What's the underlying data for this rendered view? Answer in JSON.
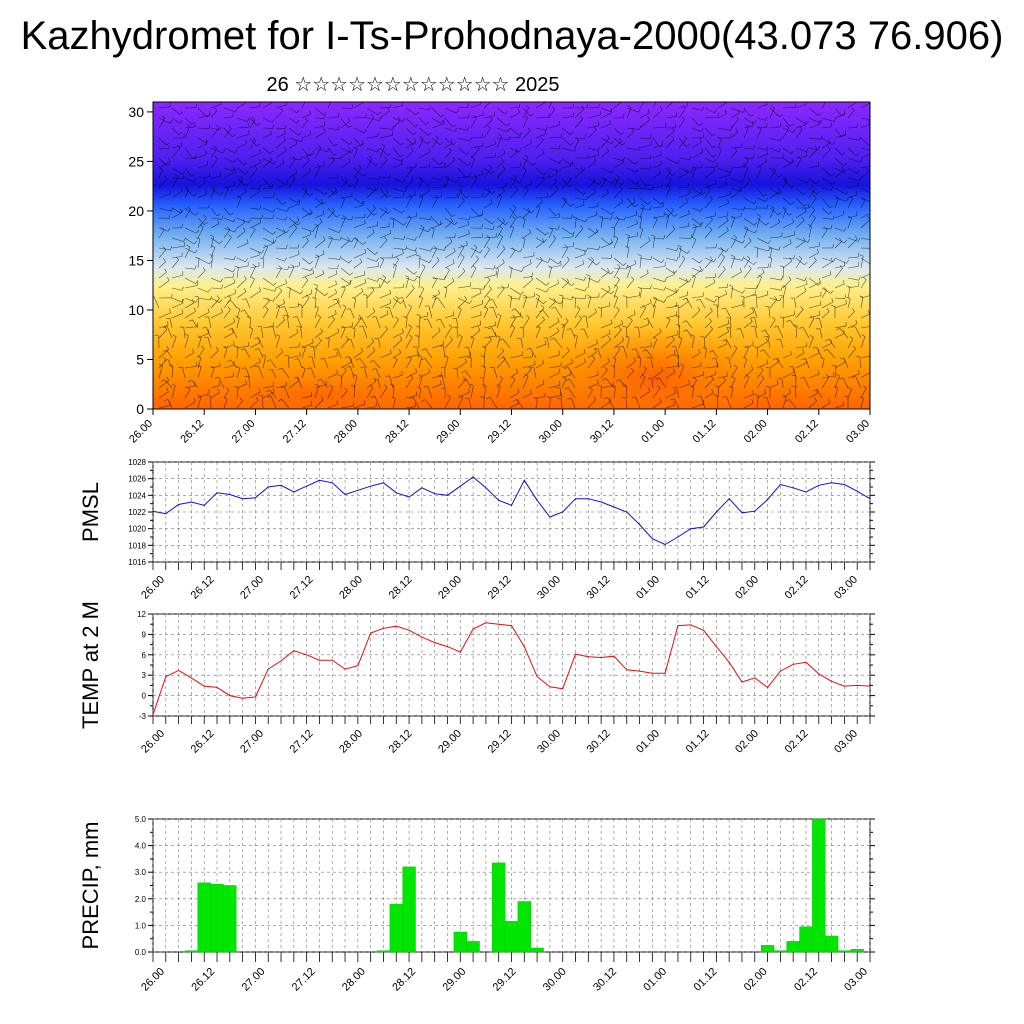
{
  "title": "Kazhydromet for I-Ts-Prohodnaya-2000(43.073 76.906)",
  "subtitle": "26 ☆☆☆☆☆☆☆☆☆☆☆☆ 2025",
  "x_ticks": [
    "26.00",
    "26.12",
    "27.00",
    "27.12",
    "28.00",
    "28.12",
    "29.00",
    "29.12",
    "30.00",
    "30.12",
    "01.00",
    "01.12",
    "02.00",
    "02.12",
    "03.00"
  ],
  "chart_data": [
    {
      "type": "heatmap",
      "name": "cross-section",
      "xlim": [
        0,
        168
      ],
      "ylim": [
        0,
        31
      ],
      "y_ticks": [
        0,
        5,
        10,
        15,
        20,
        25,
        30
      ],
      "colors": [
        "#ff6400",
        "#ffb414",
        "#fff08c",
        "#c8dcf0",
        "#3c78ff",
        "#1414dc",
        "#8c28ff"
      ],
      "notes": "filled contours with wind barbs"
    },
    {
      "type": "line",
      "ylabel": "PMSL",
      "color": "#1010d0",
      "ylim": [
        1016,
        1028
      ],
      "y_ticks": [
        1016,
        1018,
        1020,
        1022,
        1024,
        1026,
        1028
      ],
      "x": [
        0,
        3,
        6,
        9,
        12,
        15,
        18,
        21,
        24,
        27,
        30,
        33,
        36,
        39,
        42,
        45,
        48,
        51,
        54,
        57,
        60,
        63,
        66,
        69,
        72,
        75,
        78,
        81,
        84,
        87,
        90,
        93,
        96,
        99,
        102,
        105,
        108,
        111,
        114,
        117,
        120,
        123,
        126,
        129,
        132,
        135,
        138,
        141,
        144,
        147,
        150,
        153,
        156,
        159,
        162,
        165,
        168
      ],
      "values": [
        1022.1,
        1021.8,
        1022.9,
        1023.2,
        1022.8,
        1024.3,
        1024.1,
        1023.6,
        1023.7,
        1025.0,
        1025.2,
        1024.4,
        1025.1,
        1025.8,
        1025.5,
        1024.1,
        1024.6,
        1025.1,
        1025.5,
        1024.3,
        1023.8,
        1024.9,
        1024.2,
        1024.0,
        1025.1,
        1026.2,
        1024.9,
        1023.4,
        1022.8,
        1025.8,
        1023.4,
        1021.4,
        1022.0,
        1023.6,
        1023.6,
        1023.2,
        1022.6,
        1022.0,
        1020.5,
        1018.8,
        1018.1,
        1019.0,
        1020.0,
        1020.2,
        1022.0,
        1023.6,
        1021.9,
        1022.1,
        1023.5,
        1025.3,
        1024.9,
        1024.4,
        1025.2,
        1025.5,
        1025.3,
        1024.5,
        1023.6
      ]
    },
    {
      "type": "line",
      "ylabel": "TEMP at 2 M",
      "color": "#e01010",
      "ylim": [
        -3,
        12
      ],
      "y_ticks": [
        -3,
        0,
        3,
        6,
        9,
        12
      ],
      "x": [
        0,
        3,
        6,
        9,
        12,
        15,
        18,
        21,
        24,
        27,
        30,
        33,
        36,
        39,
        42,
        45,
        48,
        51,
        54,
        57,
        60,
        63,
        66,
        69,
        72,
        75,
        78,
        81,
        84,
        87,
        90,
        93,
        96,
        99,
        102,
        105,
        108,
        111,
        114,
        117,
        120,
        123,
        126,
        129,
        132,
        135,
        138,
        141,
        144,
        147,
        150,
        153,
        156,
        159,
        162,
        165,
        168
      ],
      "values": [
        -2.8,
        2.8,
        3.7,
        2.6,
        1.4,
        1.2,
        0.0,
        -0.4,
        -0.2,
        3.9,
        5.1,
        6.6,
        6.0,
        5.2,
        5.2,
        3.9,
        4.4,
        9.2,
        9.9,
        10.2,
        9.6,
        8.6,
        7.8,
        7.2,
        6.4,
        9.8,
        10.7,
        10.5,
        10.3,
        7.2,
        2.8,
        1.3,
        1.0,
        6.1,
        5.7,
        5.6,
        5.8,
        3.8,
        3.6,
        3.3,
        3.3,
        10.3,
        10.4,
        9.6,
        7.2,
        4.9,
        2.0,
        2.6,
        1.2,
        3.6,
        4.6,
        4.9,
        3.2,
        2.1,
        1.4,
        1.5,
        1.4
      ]
    },
    {
      "type": "bar",
      "ylabel": "PRECIP, mm",
      "color": "#00e600",
      "ylim": [
        0,
        5.0
      ],
      "y_ticks": [
        "0.0",
        "1.0",
        "2.0",
        "3.0",
        "4.0",
        "5.0"
      ],
      "x": [
        9,
        12,
        15,
        18,
        54,
        57,
        60,
        72,
        75,
        81,
        84,
        87,
        90,
        144,
        147,
        150,
        153,
        156,
        159,
        162,
        165
      ],
      "values": [
        0.05,
        2.6,
        2.55,
        2.5,
        0.05,
        1.8,
        3.2,
        0.75,
        0.4,
        3.35,
        1.15,
        1.9,
        0.15,
        0.25,
        0.05,
        0.4,
        0.95,
        5.0,
        0.6,
        0.05,
        0.1
      ]
    }
  ]
}
